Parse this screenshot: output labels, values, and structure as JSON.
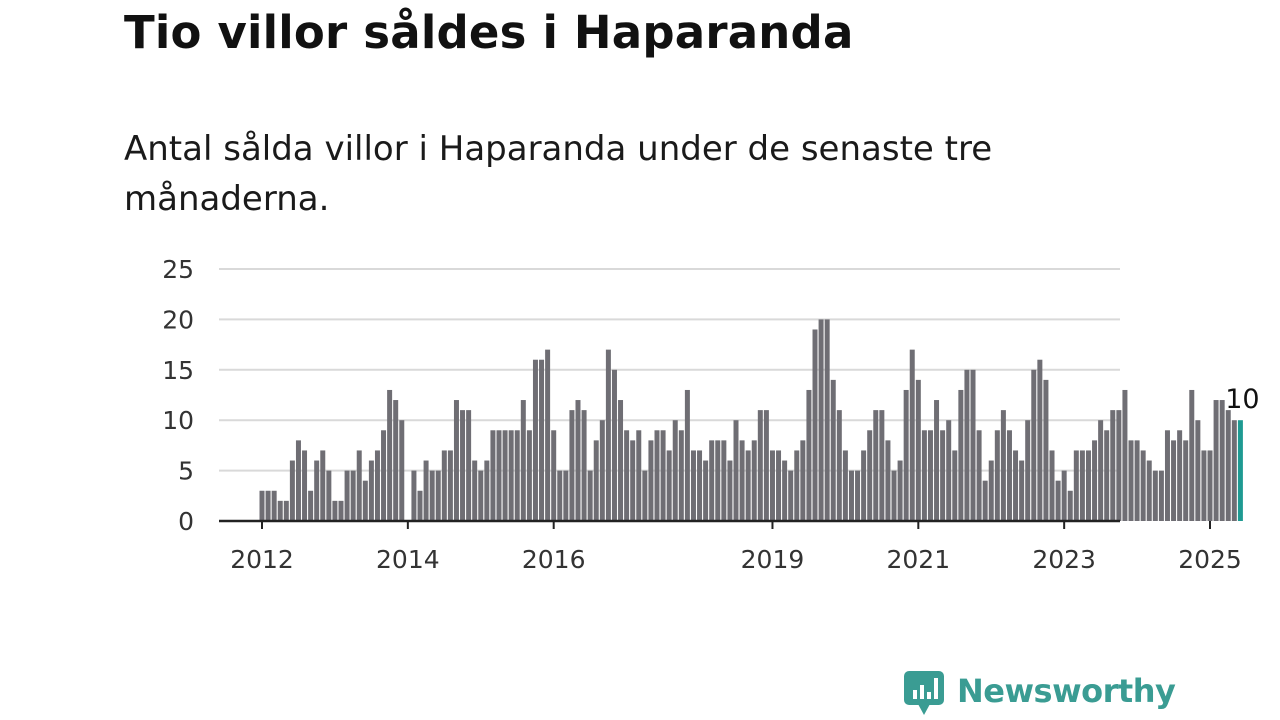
{
  "title": "Tio villor såldes i Haparanda",
  "subtitle": "Antal sålda villor i Haparanda under de senaste tre månaderna.",
  "brand": {
    "name": "Newsworthy",
    "icon": "bar-chart-speech-bubble-icon",
    "color": "#3a9c93"
  },
  "colors": {
    "bar": "#6f6e74",
    "highlight": "#1e9a92",
    "grid": "#d9d9d9",
    "axis": "#222222"
  },
  "chart_data": {
    "type": "bar",
    "title": "Tio villor såldes i Haparanda",
    "subtitle": "Antal sålda villor i Haparanda under de senaste tre månaderna.",
    "xlabel": "",
    "ylabel": "",
    "ylim": [
      0,
      25
    ],
    "yticks": [
      0,
      5,
      10,
      15,
      20,
      25
    ],
    "xticks": [
      "2012",
      "2014",
      "2016",
      "2019",
      "2021",
      "2023",
      "2025"
    ],
    "grid": true,
    "start": "2012-01",
    "frequency": "monthly",
    "values": [
      3,
      3,
      3,
      2,
      2,
      6,
      8,
      7,
      3,
      6,
      7,
      5,
      2,
      2,
      5,
      5,
      7,
      4,
      6,
      7,
      9,
      13,
      12,
      10,
      0,
      5,
      3,
      6,
      5,
      5,
      7,
      7,
      12,
      11,
      11,
      6,
      5,
      6,
      9,
      9,
      9,
      9,
      9,
      12,
      9,
      16,
      16,
      17,
      9,
      5,
      5,
      11,
      12,
      11,
      5,
      8,
      10,
      17,
      15,
      12,
      9,
      8,
      9,
      5,
      8,
      9,
      9,
      7,
      10,
      9,
      13,
      7,
      7,
      6,
      8,
      8,
      8,
      6,
      10,
      8,
      7,
      8,
      11,
      11,
      7,
      7,
      6,
      5,
      7,
      8,
      13,
      19,
      20,
      20,
      14,
      11,
      7,
      5,
      5,
      7,
      9,
      11,
      11,
      8,
      5,
      6,
      13,
      17,
      14,
      9,
      9,
      12,
      9,
      10,
      7,
      13,
      15,
      15,
      9,
      4,
      6,
      9,
      11,
      9,
      7,
      6,
      10,
      15,
      16,
      14,
      7,
      4,
      5,
      3,
      7,
      7,
      7,
      8,
      10,
      9,
      11,
      11,
      13,
      8,
      8,
      7,
      6,
      5,
      5,
      9,
      8,
      9,
      8,
      13,
      10,
      7,
      7,
      12,
      12,
      11,
      10,
      10
    ],
    "highlight": {
      "date": "2025-06",
      "value": 10,
      "label": "10"
    }
  }
}
